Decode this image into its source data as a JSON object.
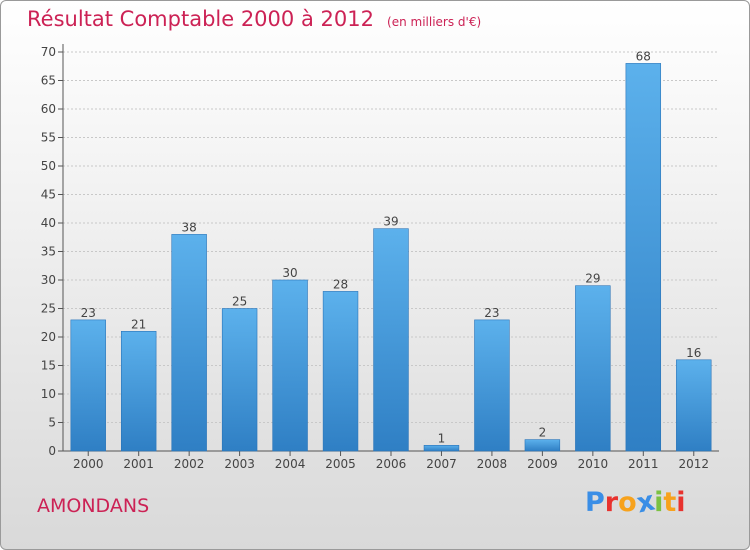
{
  "chart_data": {
    "type": "bar",
    "title": "Résultat Comptable 2000 à 2012",
    "subtitle": "(en milliers d'€)",
    "categories": [
      "2000",
      "2001",
      "2002",
      "2003",
      "2004",
      "2005",
      "2006",
      "2007",
      "2008",
      "2009",
      "2010",
      "2011",
      "2012"
    ],
    "values": [
      23,
      21,
      38,
      25,
      30,
      28,
      39,
      1,
      23,
      2,
      29,
      68,
      16
    ],
    "ylim": [
      0,
      70
    ],
    "yticks": [
      0,
      5,
      10,
      15,
      20,
      25,
      30,
      35,
      40,
      45,
      50,
      55,
      60,
      65,
      70
    ],
    "grid": true,
    "bar_color": "#4a9ede",
    "title_color": "#cc2255"
  },
  "footer": {
    "commune": "AMONDANS",
    "logo": {
      "text": "Proxiti",
      "letter_colors": [
        "#3a8ee6",
        "#e8322e",
        "#f7a21c",
        "#3a8ee6",
        "#7bc142",
        "#f7a21c",
        "#e8322e"
      ]
    }
  }
}
